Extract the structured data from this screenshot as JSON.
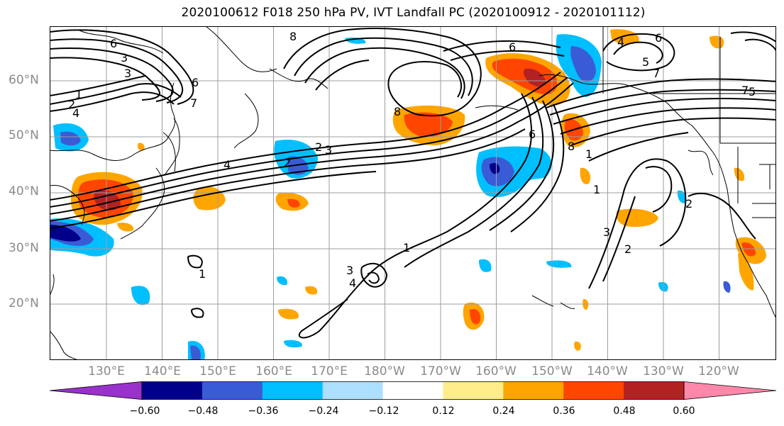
{
  "title": "2020100612 F018 250 hPa PV, IVT Landfall PC (2020100912 - 2020101112)",
  "lat_labels": [
    "60°N",
    "50°N",
    "40°N",
    "30°N",
    "20°N"
  ],
  "lon_labels": [
    "130°E",
    "140°E",
    "150°E",
    "160°E",
    "170°E",
    "180°W",
    "170°W",
    "160°W",
    "150°W",
    "140°W",
    "130°W",
    "120°W"
  ],
  "colorbar": {
    "tick_labels": [
      "−0.60",
      "−0.48",
      "−0.36",
      "−0.24",
      "−0.12",
      "0.12",
      "0.24",
      "0.36",
      "0.48",
      "0.60"
    ],
    "colors": [
      "#9932CC",
      "#00008B",
      "#3A5BD6",
      "#00BFFF",
      "#ADDFFF",
      "#FFFFFF",
      "#FFEC8B",
      "#FFA500",
      "#FF4500",
      "#B22222",
      "#FF88AA"
    ]
  },
  "contour_labels": [
    "1",
    "2",
    "3",
    "4",
    "5",
    "6",
    "7",
    "8"
  ],
  "colors": {
    "grid": "#9e9e9e",
    "contour": "#000000",
    "coast": "#000000"
  }
}
